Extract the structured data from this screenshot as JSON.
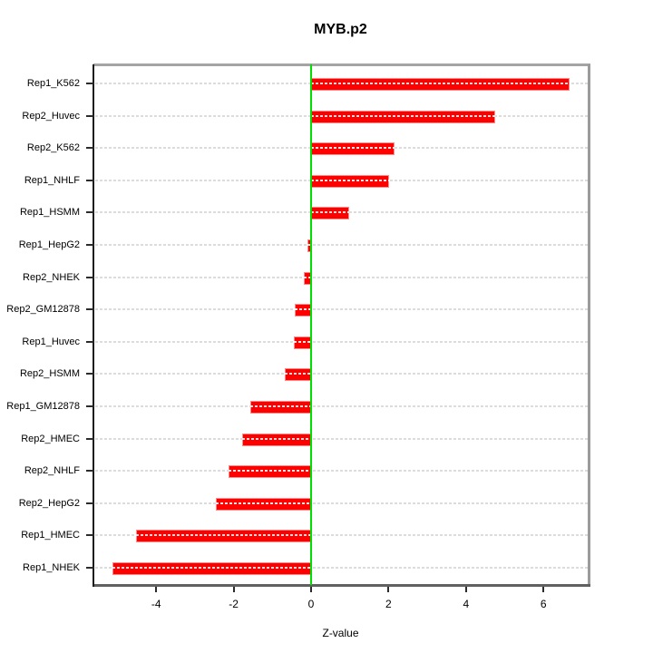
{
  "chart_data": {
    "type": "bar",
    "orientation": "horizontal",
    "title": "MYB.p2",
    "xlabel": "Z-value",
    "ylabel": "",
    "categories": [
      "Rep1_K562",
      "Rep2_Huvec",
      "Rep2_K562",
      "Rep1_NHLF",
      "Rep1_HSMM",
      "Rep1_HepG2",
      "Rep2_NHEK",
      "Rep2_GM12878",
      "Rep1_Huvec",
      "Rep2_HSMM",
      "Rep1_GM12878",
      "Rep2_HMEC",
      "Rep2_NHLF",
      "Rep2_HepG2",
      "Rep1_HMEC",
      "Rep1_NHEK"
    ],
    "values": [
      6.68,
      4.75,
      2.15,
      2.02,
      0.98,
      -0.09,
      -0.19,
      -0.41,
      -0.44,
      -0.68,
      -1.57,
      -1.79,
      -2.13,
      -2.47,
      -4.52,
      -5.14
    ],
    "x_ticks": [
      -4,
      -2,
      0,
      2,
      4,
      6
    ],
    "xlim": [
      -5.6,
      7.1
    ],
    "grid": "dashed-horizontal",
    "legend": "none",
    "colors": {
      "bar_fill": "#ff0000",
      "bar_border": "#ff8a8a",
      "bar_dash_overlay": "#ffffff",
      "zero_line": "#00e000",
      "gridline": "#dcdcdc",
      "frame_dark": "#1c1c1c",
      "frame_gray": "#a4a4a4",
      "text": "#000000"
    }
  }
}
